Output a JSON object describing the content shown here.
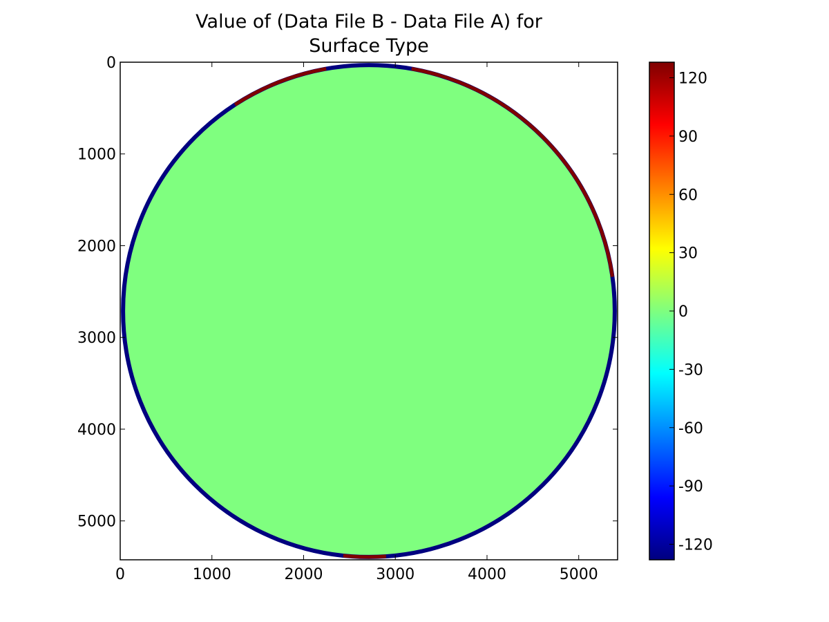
{
  "chart_data": {
    "type": "heatmap",
    "title_lines": [
      "Value of (Data File B - Data File A) for",
      "Surface Type"
    ],
    "xlim": [
      0,
      5424
    ],
    "ylim": [
      5424,
      0
    ],
    "x_ticks": [
      0,
      1000,
      2000,
      3000,
      4000,
      5000
    ],
    "y_ticks": [
      0,
      1000,
      2000,
      3000,
      4000,
      5000
    ],
    "disk": {
      "center_x": 2712,
      "center_y": 2712,
      "radius": 2700,
      "interior_value": 0
    },
    "rim": {
      "default_value": -128,
      "positive_value": 128,
      "positive_arcs_deg": [
        [
          -123,
          -100
        ],
        [
          -80,
          -8
        ],
        [
          86,
          96
        ]
      ]
    },
    "colorbar": {
      "colormap": "jet",
      "range": [
        -128,
        128
      ],
      "ticks": [
        120,
        90,
        60,
        30,
        0,
        -30,
        -60,
        -90,
        -120
      ],
      "stops": [
        "#00007f",
        "#0000ff",
        "#007fff",
        "#00ffff",
        "#7fff7f",
        "#ffff00",
        "#ff7f00",
        "#ff0000",
        "#7f0000"
      ]
    }
  }
}
